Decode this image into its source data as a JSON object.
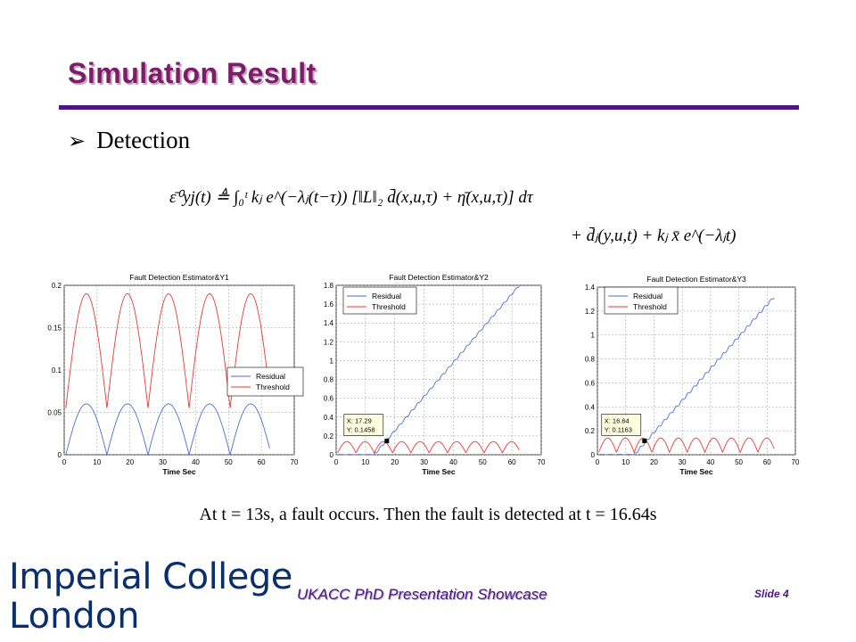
{
  "slide": {
    "title": "Simulation Result",
    "bullet": "Detection",
    "formula_line1": "ε̄⁰yj(t) ≜ ∫₀ᵗ kⱼ e^(−λⱼ(t−τ)) [‖L‖₂ d̄(x,u,τ) + η̄(x,u,τ)] dτ",
    "formula_line2": "+ d̄ⱼ(y,u,t) + kⱼ x̄ e^(−λⱼt)",
    "caption": "At t = 13s, a fault occurs.  Then the fault is detected at t = 16.64s",
    "footer": "UKACC PhD Presentation Showcase",
    "slide_number": "Slide 4",
    "logo_line1": "Imperial College",
    "logo_line2": "London"
  },
  "colors": {
    "title": "#7a1e6a",
    "rule": "#4b1683",
    "residual": "#4a6fd0",
    "threshold": "#e83a3a",
    "logo": "#0a2e6e"
  },
  "chart_data": [
    {
      "type": "line",
      "title": "Fault Detection Estimator&Y1",
      "xlabel": "Time Sec",
      "ylabel": "",
      "xlim": [
        0,
        70
      ],
      "ylim": [
        0,
        0.2
      ],
      "xticks": [
        0,
        10,
        20,
        30,
        40,
        50,
        60,
        70
      ],
      "yticks": [
        0,
        0.05,
        0.1,
        0.15,
        0.2
      ],
      "ytick_labels": [
        "0",
        "0.05",
        "0.1",
        "0.15",
        "0.2"
      ],
      "grid": true,
      "legend": "center-right",
      "series": [
        {
          "name": "Residual",
          "color": "#4a6fd0",
          "shape": "abs_sine",
          "amplitude": 0.06,
          "period": 12.5,
          "start": 0.5,
          "end": 62.5
        },
        {
          "name": "Threshold",
          "color": "#e83a3a",
          "shape": "abs_sine",
          "base": 0.055,
          "amplitude": 0.135,
          "period": 12.5,
          "start": 0.5,
          "end": 62.5
        }
      ]
    },
    {
      "type": "line",
      "title": "Fault Detection Estimator&Y2",
      "xlabel": "Time Sec",
      "ylabel": "",
      "xlim": [
        0,
        70
      ],
      "ylim": [
        0,
        1.8
      ],
      "xticks": [
        0,
        10,
        20,
        30,
        40,
        50,
        60,
        70
      ],
      "yticks": [
        0,
        0.2,
        0.4,
        0.6,
        0.8,
        1,
        1.2,
        1.4,
        1.6,
        1.8
      ],
      "ytick_labels": [
        "0",
        "0.2",
        "0.4",
        "0.6",
        "0.8",
        "1",
        "1.2",
        "1.4",
        "1.6",
        "1.8"
      ],
      "grid": true,
      "legend": "top-left",
      "series": [
        {
          "name": "Residual",
          "color": "#4a6fd0",
          "shape": "ramp",
          "fault_time": 13,
          "start": 0.5,
          "end": 62.5,
          "end_value": 1.8
        },
        {
          "name": "Threshold",
          "color": "#e83a3a",
          "shape": "abs_sine",
          "base": 0.02,
          "amplitude": 0.12,
          "period": 6.25,
          "start": 0.5,
          "end": 62.5
        }
      ],
      "marker": {
        "x": 17.29,
        "y": 0.1458,
        "label_x": "X: 17.29",
        "label_y": "Y: 0.1458"
      }
    },
    {
      "type": "line",
      "title": "Fault Detection Estimator&Y3",
      "xlabel": "Time Sec",
      "ylabel": "",
      "xlim": [
        0,
        70
      ],
      "ylim": [
        0,
        1.4
      ],
      "xticks": [
        0,
        10,
        20,
        30,
        40,
        50,
        60,
        70
      ],
      "yticks": [
        0,
        0.2,
        0.4,
        0.6,
        0.8,
        1,
        1.2,
        1.4
      ],
      "ytick_labels": [
        "0",
        "0.2",
        "0.4",
        "0.6",
        "0.8",
        "1",
        "1.2",
        "1.4"
      ],
      "grid": true,
      "legend": "top-left",
      "series": [
        {
          "name": "Residual",
          "color": "#4a6fd0",
          "shape": "ramp",
          "fault_time": 13,
          "start": 0.5,
          "end": 62.5,
          "end_value": 1.32
        },
        {
          "name": "Threshold",
          "color": "#e83a3a",
          "shape": "abs_sine",
          "base": 0.02,
          "amplitude": 0.12,
          "period": 6.25,
          "start": 0.5,
          "end": 62.5
        }
      ],
      "marker": {
        "x": 16.64,
        "y": 0.1163,
        "label_x": "X: 16.64",
        "label_y": "Y: 0.1163"
      }
    }
  ]
}
